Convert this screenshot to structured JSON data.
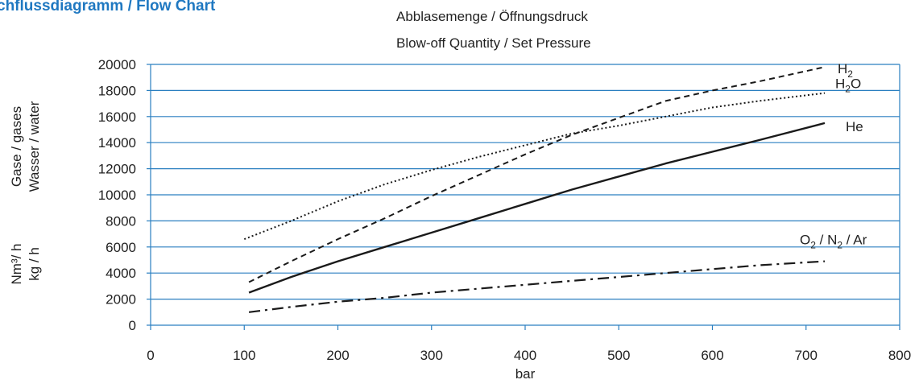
{
  "page": {
    "heading": "chflussdiagramm / Flow Chart"
  },
  "chart_data": {
    "type": "line",
    "title": "",
    "subtitle_de": "Abblasemenge / Öffnungsdruck",
    "subtitle_en": "Blow-off Quantity / Set Pressure",
    "xlabel": "bar",
    "ylabel_units_gas": "Nm³/ h",
    "ylabel_units_water": "kg / h",
    "ylabel_medium_gas": "Gase / gases",
    "ylabel_medium_water": "Wasser / water",
    "xlim": [
      0,
      800
    ],
    "ylim": [
      0,
      20000
    ],
    "x_ticks": [
      0,
      100,
      200,
      300,
      400,
      500,
      600,
      700,
      800
    ],
    "y_ticks": [
      0,
      2000,
      4000,
      6000,
      8000,
      10000,
      12000,
      14000,
      16000,
      18000,
      20000
    ],
    "grid": "horizontal",
    "colors": {
      "grid": "#2a7fc0",
      "axis": "#2a7fc0",
      "series": "#1a1a1a",
      "heading": "#1f78c1"
    },
    "series": [
      {
        "key": "h2",
        "label_main": "H",
        "label_sub": "2",
        "label_tail": "",
        "line_style": "dashed",
        "x": [
          105,
          150,
          200,
          250,
          300,
          350,
          400,
          450,
          500,
          550,
          600,
          650,
          720
        ],
        "y": [
          3300,
          4900,
          6600,
          8200,
          9900,
          11500,
          13100,
          14600,
          15900,
          17200,
          18000,
          18700,
          19800
        ]
      },
      {
        "key": "h2o",
        "label_main": "H",
        "label_sub": "2",
        "label_tail": "O",
        "line_style": "dotted",
        "x": [
          100,
          150,
          200,
          250,
          300,
          350,
          400,
          450,
          500,
          550,
          600,
          650,
          720
        ],
        "y": [
          6600,
          8000,
          9500,
          10800,
          11900,
          12900,
          13800,
          14700,
          15300,
          16000,
          16700,
          17200,
          17800
        ]
      },
      {
        "key": "he",
        "label_main": "He",
        "label_sub": "",
        "label_tail": "",
        "line_style": "solid",
        "x": [
          105,
          150,
          200,
          250,
          300,
          350,
          400,
          450,
          500,
          550,
          600,
          650,
          720
        ],
        "y": [
          2500,
          3700,
          4900,
          6000,
          7100,
          8200,
          9300,
          10400,
          11400,
          12400,
          13300,
          14200,
          15500
        ]
      },
      {
        "key": "o2n2ar",
        "label_main": "O",
        "label_sub": "2",
        "label_tail": " / N",
        "label_sub2": "2",
        "label_tail2": " / Ar",
        "line_style": "dash-dot",
        "x": [
          105,
          150,
          200,
          250,
          300,
          350,
          400,
          450,
          500,
          550,
          600,
          650,
          720
        ],
        "y": [
          1000,
          1400,
          1800,
          2100,
          2500,
          2800,
          3100,
          3400,
          3700,
          4000,
          4300,
          4600,
          4900
        ]
      }
    ]
  }
}
